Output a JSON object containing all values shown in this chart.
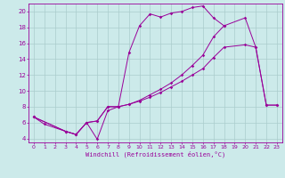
{
  "xlabel": "Windchill (Refroidissement éolien,°C)",
  "bg_color": "#cceaea",
  "grid_color": "#aacccc",
  "line_color": "#990099",
  "xlim": [
    -0.5,
    23.5
  ],
  "ylim": [
    3.5,
    21
  ],
  "xticks": [
    0,
    1,
    2,
    3,
    4,
    5,
    6,
    7,
    8,
    9,
    10,
    11,
    12,
    13,
    14,
    15,
    16,
    17,
    18,
    19,
    20,
    21,
    22,
    23
  ],
  "yticks": [
    4,
    6,
    8,
    10,
    12,
    14,
    16,
    18,
    20
  ],
  "line1_x": [
    0,
    1,
    3,
    4,
    5,
    6,
    7,
    8,
    9,
    10,
    11,
    12,
    13,
    14,
    15,
    16,
    17,
    18
  ],
  "line1_y": [
    6.7,
    5.8,
    4.9,
    4.5,
    6.0,
    6.2,
    8.0,
    8.0,
    14.8,
    18.2,
    19.7,
    19.3,
    19.8,
    20.0,
    20.5,
    20.7,
    19.2,
    18.2
  ],
  "line2_x": [
    0,
    3,
    4,
    5,
    6,
    7,
    8,
    9,
    10,
    11,
    12,
    13,
    14,
    15,
    16,
    17,
    18,
    20,
    21,
    22,
    23
  ],
  "line2_y": [
    6.7,
    4.9,
    4.5,
    6.0,
    3.9,
    7.5,
    8.0,
    8.3,
    8.7,
    9.2,
    9.8,
    10.5,
    11.2,
    12.0,
    12.8,
    14.2,
    15.5,
    15.8,
    15.5,
    8.2,
    8.2
  ],
  "line3_x": [
    0,
    3,
    4,
    5,
    6,
    7,
    8,
    9,
    10,
    11,
    12,
    13,
    14,
    15,
    16,
    17,
    18,
    20,
    21,
    22,
    23
  ],
  "line3_y": [
    6.7,
    4.9,
    4.5,
    6.0,
    6.2,
    8.0,
    8.0,
    8.3,
    8.8,
    9.5,
    10.2,
    11.0,
    12.0,
    13.2,
    14.5,
    16.8,
    18.2,
    19.2,
    15.5,
    8.2,
    8.2
  ]
}
